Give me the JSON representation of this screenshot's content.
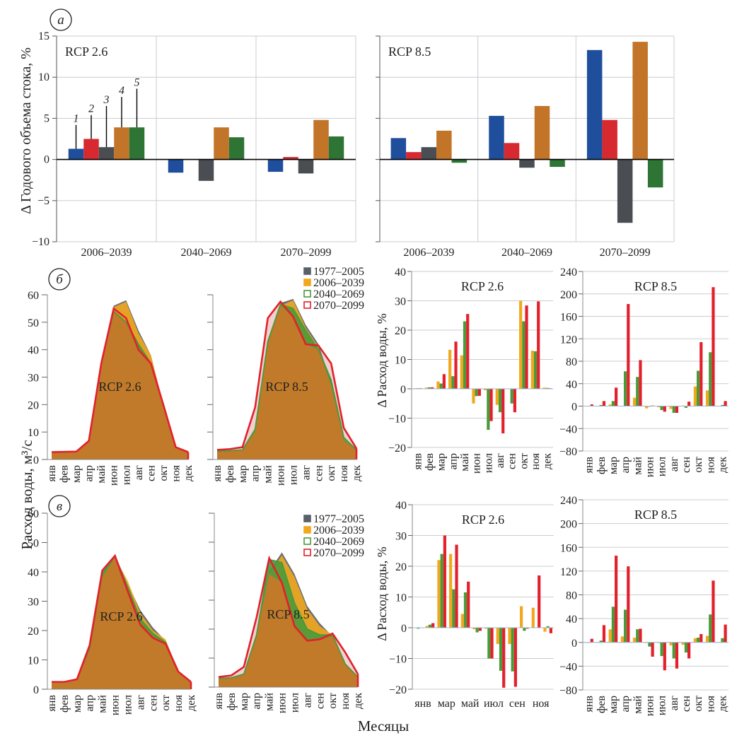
{
  "colors": {
    "baseline": "#5a6068",
    "p2006": "#f2a81d",
    "p2040": "#4a9a3a",
    "p2070": "#e3202c",
    "a1": "#1f4e9c",
    "a2": "#d62a30",
    "a3": "#4a4d52",
    "a4": "#c27428",
    "a5": "#2e7434",
    "area_fill": "#c07a2a"
  },
  "panel_labels": {
    "a": "a",
    "b": "б",
    "c": "в"
  },
  "chart_data": [
    {
      "id": "a-rcp26",
      "type": "bar",
      "title": "RCP 2.6",
      "ylabel": "Δ Годового объема стока, %",
      "ylim": [
        -10,
        15
      ],
      "yticks": [
        -10,
        -5,
        0,
        5,
        10,
        15
      ],
      "categories": [
        "2006–2039",
        "2040–2069",
        "2070–2099"
      ],
      "series_labels": [
        "1",
        "2",
        "3",
        "4",
        "5"
      ],
      "series": [
        {
          "name": "1",
          "values": [
            1.3,
            -1.6,
            -1.5
          ]
        },
        {
          "name": "2",
          "values": [
            2.5,
            0.0,
            0.3
          ]
        },
        {
          "name": "3",
          "values": [
            1.5,
            -2.6,
            -1.7
          ]
        },
        {
          "name": "4",
          "values": [
            3.9,
            3.9,
            4.8
          ]
        },
        {
          "name": "5",
          "values": [
            3.9,
            2.7,
            2.8
          ]
        }
      ],
      "error_bars_first_group": [
        4.2,
        5.4,
        6.5,
        7.6,
        8.6
      ]
    },
    {
      "id": "a-rcp85",
      "type": "bar",
      "title": "RCP 8.5",
      "ylim": [
        -10,
        15
      ],
      "categories": [
        "2006–2039",
        "2040–2069",
        "2070–2099"
      ],
      "series": [
        {
          "name": "1",
          "values": [
            2.6,
            5.3,
            13.3
          ]
        },
        {
          "name": "2",
          "values": [
            0.9,
            2.0,
            4.8
          ]
        },
        {
          "name": "3",
          "values": [
            1.5,
            -1.0,
            -7.7
          ]
        },
        {
          "name": "4",
          "values": [
            3.5,
            6.5,
            14.3
          ]
        },
        {
          "name": "5",
          "values": [
            -0.4,
            -0.9,
            -3.4
          ]
        }
      ]
    },
    {
      "id": "b-area-rcp26",
      "type": "area",
      "title": "RCP 2.6",
      "ylabel": "Расход воды, м³/с",
      "ylim": [
        0,
        60
      ],
      "yticks": [
        0,
        10,
        20,
        30,
        40,
        50,
        60
      ],
      "categories": [
        "янв",
        "фев",
        "мар",
        "апр",
        "май",
        "июн",
        "июл",
        "авг",
        "сен",
        "окт",
        "ноя",
        "дек"
      ],
      "series": [
        {
          "name": "1977–2005",
          "values": [
            2.7,
            2.8,
            2.9,
            6.8,
            35,
            56,
            58,
            47,
            38,
            20,
            4.5,
            2.7
          ]
        },
        {
          "name": "2006–2039",
          "values": [
            2.7,
            2.8,
            2.9,
            6.8,
            35,
            55.5,
            57.5,
            46,
            38,
            20,
            4.5,
            2.7
          ]
        },
        {
          "name": "2040–2069",
          "values": [
            2.7,
            2.8,
            2.9,
            6.8,
            35,
            54,
            50,
            42,
            35,
            20,
            4.5,
            2.7
          ]
        },
        {
          "name": "2070–2099",
          "values": [
            2.7,
            2.8,
            2.9,
            6.8,
            35,
            55,
            51.5,
            40,
            35,
            20,
            4.5,
            2.7
          ]
        }
      ]
    },
    {
      "id": "b-area-rcp85",
      "type": "area",
      "title": "RCP 8.5",
      "ylim": [
        0,
        60
      ],
      "categories": [
        "янв",
        "фев",
        "мар",
        "апр",
        "май",
        "июн",
        "июл",
        "авг",
        "сен",
        "окт",
        "ноя",
        "дек"
      ],
      "legend": [
        "1977–2005",
        "2006–2039",
        "2040–2069",
        "2070–2099"
      ],
      "series": [
        {
          "name": "1977–2005",
          "values": [
            3,
            3.2,
            3.5,
            10,
            42,
            57,
            58.5,
            49,
            42,
            28,
            7,
            3.5
          ]
        },
        {
          "name": "2006–2039",
          "values": [
            3,
            3.2,
            3.5,
            10,
            42,
            56,
            58,
            48,
            41,
            27,
            7,
            3.5
          ]
        },
        {
          "name": "2040–2069",
          "values": [
            3,
            3.2,
            3.5,
            11,
            43,
            56.5,
            55,
            47,
            40,
            29,
            8,
            3.5
          ]
        },
        {
          "name": "2070–2099",
          "values": [
            3.5,
            3.8,
            4.5,
            19,
            51.5,
            57.5,
            52,
            42,
            41.5,
            35,
            11.5,
            4
          ]
        }
      ]
    },
    {
      "id": "b-bar-rcp26",
      "type": "bar",
      "title": "RCP 2.6",
      "ylabel": "Δ Расход воды, %",
      "ylim": [
        -20,
        40
      ],
      "yticks": [
        -20,
        -10,
        0,
        10,
        20,
        30,
        40
      ],
      "categories": [
        "янв",
        "фев",
        "мар",
        "апр",
        "май",
        "июн",
        "июл",
        "авг",
        "сен",
        "окт",
        "ноя",
        "дек"
      ],
      "series": [
        {
          "name": "2006–2039",
          "values": [
            0.2,
            0.4,
            2.5,
            13.3,
            11.4,
            -5,
            -0.5,
            -5.5,
            0,
            30,
            13,
            0.4
          ]
        },
        {
          "name": "2040–2069",
          "values": [
            0.2,
            0.5,
            1.8,
            4.3,
            23,
            -2.5,
            -14,
            -8,
            -5,
            23,
            12.8,
            0.3
          ]
        },
        {
          "name": "2070–2099",
          "values": [
            0.2,
            0.5,
            5,
            16.1,
            25.5,
            -2.4,
            -11,
            -15.2,
            -8,
            28.4,
            29.8,
            0.2
          ]
        }
      ]
    },
    {
      "id": "b-bar-rcp85",
      "type": "bar",
      "title": "RCP 8.5",
      "ylim": [
        -80,
        240
      ],
      "yticks": [
        -80,
        -40,
        0,
        40,
        80,
        120,
        160,
        200,
        240
      ],
      "categories": [
        "янв",
        "фев",
        "мар",
        "апр",
        "май",
        "июн",
        "июл",
        "авг",
        "сен",
        "окт",
        "ноя",
        "дек"
      ],
      "series": [
        {
          "name": "2006–2039",
          "values": [
            0,
            0,
            3,
            0,
            15,
            -4,
            -2,
            -5,
            1,
            35,
            28,
            0
          ]
        },
        {
          "name": "2040–2069",
          "values": [
            0.5,
            2,
            9,
            62,
            52,
            -1,
            -7,
            -12,
            -3,
            63,
            96,
            2
          ]
        },
        {
          "name": "2070–2099",
          "values": [
            3,
            9,
            33,
            182,
            82,
            1,
            -10,
            -12,
            8,
            114,
            212,
            9
          ]
        }
      ]
    },
    {
      "id": "c-area-rcp26",
      "type": "area",
      "title": "RCP 2.6",
      "ylim": [
        0,
        60
      ],
      "yticks": [
        0,
        10,
        20,
        30,
        40,
        50,
        60
      ],
      "categories": [
        "янв",
        "фев",
        "мар",
        "апр",
        "май",
        "июн",
        "июл",
        "авг",
        "сен",
        "окт",
        "ноя",
        "дек"
      ],
      "series": [
        {
          "name": "1977–2005",
          "values": [
            2.5,
            2.5,
            3.4,
            14,
            38,
            45.5,
            36,
            27,
            21,
            16.5,
            6,
            2.5
          ]
        },
        {
          "name": "2006–2039",
          "values": [
            2.5,
            2.5,
            3.4,
            14,
            39,
            45,
            37,
            26,
            20,
            17,
            6,
            2.5
          ]
        },
        {
          "name": "2040–2069",
          "values": [
            2.5,
            2.5,
            3.4,
            14,
            39.5,
            45.5,
            35,
            24,
            19,
            16,
            6,
            2.5
          ]
        },
        {
          "name": "2070–2099",
          "values": [
            2.5,
            2.5,
            3.4,
            15,
            40.5,
            45.5,
            33.5,
            22,
            17.5,
            15.5,
            6,
            2.5
          ]
        }
      ]
    },
    {
      "id": "c-area-rcp85",
      "type": "area",
      "title": "RCP 8.5",
      "ylim": [
        0,
        60
      ],
      "categories": [
        "янв",
        "фев",
        "мар",
        "апр",
        "май",
        "июн",
        "июл",
        "авг",
        "сен",
        "окт",
        "ноя",
        "дек"
      ],
      "legend": [
        "1977–2005",
        "2006–2039",
        "2040–2069",
        "2070–2099"
      ],
      "series": [
        {
          "name": "1977–2005",
          "values": [
            3,
            3.2,
            4.5,
            18,
            40,
            46.5,
            39,
            28,
            22,
            17.5,
            8,
            3.5
          ]
        },
        {
          "name": "2006–2039",
          "values": [
            3,
            3.2,
            4.5,
            18,
            39,
            45.5,
            38,
            27,
            21,
            18,
            8,
            3.5
          ]
        },
        {
          "name": "2040–2069",
          "values": [
            3,
            3.2,
            4.5,
            18,
            44,
            43,
            29,
            20,
            18,
            18,
            8,
            3.5
          ]
        },
        {
          "name": "2070–2099",
          "values": [
            3.5,
            4,
            7,
            24,
            44.5,
            36,
            21,
            16,
            16.5,
            18.5,
            12,
            4.5
          ]
        }
      ]
    },
    {
      "id": "c-bar-rcp26",
      "type": "bar",
      "title": "RCP 2.6",
      "ylabel": "Δ Расход воды, %",
      "ylim": [
        -20,
        40
      ],
      "yticks": [
        -20,
        -10,
        0,
        10,
        20,
        30,
        40
      ],
      "categories": [
        "янв",
        "фев",
        "мар",
        "апр",
        "май",
        "июн",
        "июл",
        "авг",
        "сен",
        "окт",
        "ноя",
        "дек"
      ],
      "xtick_labels": [
        "янв",
        "мар",
        "май",
        "июл",
        "сен",
        "ноя"
      ],
      "series": [
        {
          "name": "2006–2039",
          "values": [
            0,
            0.6,
            22,
            24,
            4.5,
            -0.5,
            -0.3,
            -5.3,
            -5.3,
            7,
            6.5,
            -1.3
          ]
        },
        {
          "name": "2040–2069",
          "values": [
            -0.3,
            1,
            24,
            12.5,
            11.5,
            -1.5,
            -10,
            -14,
            -14.2,
            -1,
            0,
            0.5
          ]
        },
        {
          "name": "2070–2099",
          "values": [
            0,
            1.5,
            30,
            27,
            15,
            -1,
            -10,
            -19.5,
            -19.2,
            -0.3,
            17,
            -1.8
          ]
        }
      ]
    },
    {
      "id": "c-bar-rcp85",
      "type": "bar",
      "title": "RCP 8.5",
      "ylim": [
        -80,
        240
      ],
      "yticks": [
        -80,
        -40,
        0,
        40,
        80,
        120,
        160,
        200,
        240
      ],
      "categories": [
        "янв",
        "фев",
        "мар",
        "апр",
        "май",
        "июн",
        "июл",
        "авг",
        "сен",
        "окт",
        "ноя",
        "дек"
      ],
      "series": [
        {
          "name": "2006–2039",
          "values": [
            0,
            0,
            22,
            10,
            8,
            -1,
            -1,
            -5,
            -4,
            7,
            11,
            0
          ]
        },
        {
          "name": "2040–2069",
          "values": [
            0,
            3,
            60,
            55,
            22,
            -7,
            -23,
            -27,
            -17,
            8,
            47,
            7
          ]
        },
        {
          "name": "2070–2099",
          "values": [
            6,
            29,
            146,
            128,
            23,
            -24,
            -47,
            -44,
            -27,
            14,
            104,
            30
          ]
        }
      ]
    }
  ],
  "axis_labels": {
    "a_y": "Δ Годового объема стока, %",
    "flow_y": "Расход воды, м³/с",
    "delta_y": "Δ Расход воды, %",
    "months": "Месяцы"
  }
}
